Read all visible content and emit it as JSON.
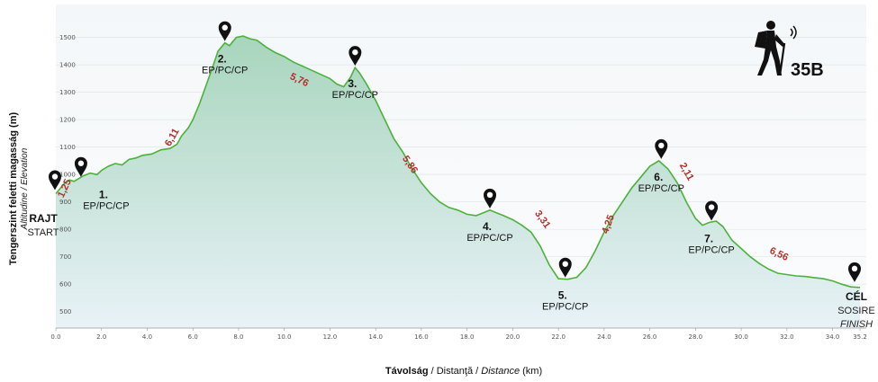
{
  "chart_data": {
    "type": "area",
    "route_id": "35B",
    "xlabel": {
      "bold": "Távolság",
      "ro": " / Distanţă / ",
      "en": "Distance",
      "unit": " (km)"
    },
    "ylabel": {
      "main": "Tengerszint feletti magasság (m)",
      "sub": "Altitudine / Elevation"
    },
    "xlim": [
      0,
      35.2
    ],
    "ylim": [
      440,
      1620
    ],
    "x_ticks": [
      "0.0",
      "2.0",
      "4.0",
      "6.0",
      "8.0",
      "10.0",
      "12.0",
      "14.0",
      "16.0",
      "18.0",
      "20.0",
      "22.0",
      "24.0",
      "26.0",
      "28.0",
      "30.0",
      "32.0",
      "34.0",
      "35.2"
    ],
    "y_ticks": [
      "500",
      "600",
      "700",
      "800",
      "900",
      "1000",
      "1100",
      "1200",
      "1300",
      "1400",
      "1500"
    ],
    "colors": {
      "line": "#4db23a",
      "fill_top": "#b9dcc9",
      "fill_bottom": "#e6f1f6",
      "segment": "#b0302b"
    },
    "profile": [
      [
        0.0,
        930
      ],
      [
        0.2,
        950
      ],
      [
        0.4,
        970
      ],
      [
        0.6,
        980
      ],
      [
        0.8,
        975
      ],
      [
        1.0,
        985
      ],
      [
        1.2,
        995
      ],
      [
        1.5,
        1005
      ],
      [
        1.8,
        1000
      ],
      [
        2.0,
        1015
      ],
      [
        2.3,
        1030
      ],
      [
        2.6,
        1040
      ],
      [
        2.9,
        1035
      ],
      [
        3.2,
        1055
      ],
      [
        3.5,
        1060
      ],
      [
        3.8,
        1070
      ],
      [
        4.2,
        1075
      ],
      [
        4.6,
        1090
      ],
      [
        5.0,
        1095
      ],
      [
        5.3,
        1110
      ],
      [
        5.5,
        1140
      ],
      [
        5.8,
        1170
      ],
      [
        6.0,
        1200
      ],
      [
        6.3,
        1260
      ],
      [
        6.6,
        1330
      ],
      [
        6.9,
        1400
      ],
      [
        7.1,
        1450
      ],
      [
        7.4,
        1480
      ],
      [
        7.6,
        1470
      ],
      [
        7.9,
        1500
      ],
      [
        8.2,
        1505
      ],
      [
        8.5,
        1495
      ],
      [
        8.8,
        1490
      ],
      [
        9.2,
        1465
      ],
      [
        9.6,
        1445
      ],
      [
        10.0,
        1430
      ],
      [
        10.4,
        1410
      ],
      [
        10.8,
        1395
      ],
      [
        11.2,
        1380
      ],
      [
        11.6,
        1365
      ],
      [
        12.0,
        1350
      ],
      [
        12.3,
        1330
      ],
      [
        12.6,
        1320
      ],
      [
        12.9,
        1355
      ],
      [
        13.1,
        1390
      ],
      [
        13.3,
        1370
      ],
      [
        13.6,
        1330
      ],
      [
        14.0,
        1270
      ],
      [
        14.4,
        1200
      ],
      [
        14.8,
        1130
      ],
      [
        15.2,
        1080
      ],
      [
        15.6,
        1020
      ],
      [
        16.0,
        970
      ],
      [
        16.4,
        930
      ],
      [
        16.8,
        900
      ],
      [
        17.2,
        880
      ],
      [
        17.6,
        870
      ],
      [
        18.0,
        855
      ],
      [
        18.4,
        850
      ],
      [
        18.7,
        860
      ],
      [
        19.0,
        870
      ],
      [
        19.3,
        860
      ],
      [
        19.6,
        850
      ],
      [
        20.0,
        835
      ],
      [
        20.4,
        815
      ],
      [
        20.8,
        790
      ],
      [
        21.2,
        740
      ],
      [
        21.6,
        670
      ],
      [
        22.0,
        620
      ],
      [
        22.4,
        618
      ],
      [
        22.8,
        625
      ],
      [
        23.2,
        660
      ],
      [
        23.6,
        720
      ],
      [
        24.0,
        790
      ],
      [
        24.4,
        850
      ],
      [
        24.8,
        900
      ],
      [
        25.2,
        950
      ],
      [
        25.6,
        990
      ],
      [
        26.0,
        1030
      ],
      [
        26.4,
        1050
      ],
      [
        26.8,
        1020
      ],
      [
        27.2,
        970
      ],
      [
        27.6,
        900
      ],
      [
        28.0,
        840
      ],
      [
        28.3,
        815
      ],
      [
        28.6,
        825
      ],
      [
        28.9,
        830
      ],
      [
        29.2,
        810
      ],
      [
        29.6,
        760
      ],
      [
        30.0,
        730
      ],
      [
        30.4,
        700
      ],
      [
        30.8,
        675
      ],
      [
        31.2,
        655
      ],
      [
        31.6,
        640
      ],
      [
        32.0,
        635
      ],
      [
        32.4,
        630
      ],
      [
        32.8,
        628
      ],
      [
        33.2,
        624
      ],
      [
        33.6,
        620
      ],
      [
        34.0,
        612
      ],
      [
        34.4,
        600
      ],
      [
        34.8,
        590
      ],
      [
        35.2,
        588
      ]
    ],
    "checkpoints": [
      {
        "num": "1.",
        "label": "EP/PC/CP",
        "x": 1.1,
        "y": 985
      },
      {
        "num": "2.",
        "label": "EP/PC/CP",
        "x": 7.4,
        "y": 1480
      },
      {
        "num": "3.",
        "label": "EP/PC/CP",
        "x": 13.1,
        "y": 1390
      },
      {
        "num": "4.",
        "label": "EP/PC/CP",
        "x": 19.0,
        "y": 870
      },
      {
        "num": "5.",
        "label": "EP/PC/CP",
        "x": 22.3,
        "y": 618
      },
      {
        "num": "6.",
        "label": "EP/PC/CP",
        "x": 26.5,
        "y": 1050
      },
      {
        "num": "7.",
        "label": "EP/PC/CP",
        "x": 28.7,
        "y": 825
      }
    ],
    "start": {
      "x": 0.0,
      "y": 930,
      "main": "RAJT",
      "sub": "START"
    },
    "finish": {
      "x": 35.2,
      "y": 588,
      "main": "CÉL",
      "sub": "SOSIRE",
      "sub2": "FINISH"
    },
    "segments": [
      {
        "label": "1,25",
        "x": 0.5,
        "y": 945,
        "rot": -65
      },
      {
        "label": "6,11",
        "x": 5.2,
        "y": 1130,
        "rot": -60
      },
      {
        "label": "5,76",
        "x": 10.6,
        "y": 1335,
        "rot": 25
      },
      {
        "label": "5,86",
        "x": 15.4,
        "y": 1030,
        "rot": 55
      },
      {
        "label": "3,31",
        "x": 21.2,
        "y": 830,
        "rot": 55
      },
      {
        "label": "4,25",
        "x": 24.3,
        "y": 815,
        "rot": -70
      },
      {
        "label": "2,11",
        "x": 27.5,
        "y": 1005,
        "rot": 60
      },
      {
        "label": "6,56",
        "x": 31.6,
        "y": 700,
        "rot": 25
      }
    ]
  }
}
